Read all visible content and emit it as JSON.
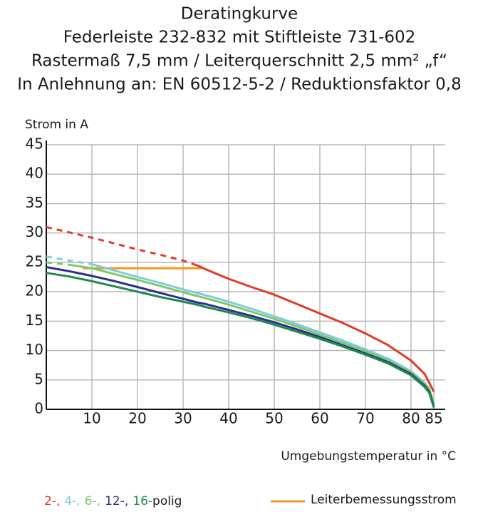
{
  "chart_data": {
    "type": "line",
    "title": [
      "Deratingkurve",
      "Federleiste 232-832 mit Stiftleiste 731-602",
      "Rastermaß 7,5 mm / Leiterquerschnitt 2,5 mm² „f“",
      "In Anlehnung an: EN 60512-5-2 / Reduktionsfaktor 0,8"
    ],
    "y_label": "Strom in A",
    "x_label": "Umgebungstemperatur in °C",
    "x": [
      0,
      5,
      10,
      15,
      20,
      25,
      30,
      33,
      35,
      40,
      45,
      50,
      55,
      60,
      65,
      70,
      75,
      80,
      83,
      84,
      85
    ],
    "series": [
      {
        "name": "2-,",
        "color": "#e03a2a",
        "dashed": [
          31,
          30.1,
          29.2,
          28.2,
          27.2,
          26.3,
          25.3,
          24.5,
          null,
          null,
          null,
          null,
          null,
          null,
          null,
          null,
          null,
          null,
          null,
          null,
          null
        ],
        "values": [
          null,
          null,
          null,
          null,
          null,
          null,
          null,
          24.5,
          23.8,
          22.2,
          20.8,
          19.5,
          17.9,
          16.3,
          14.7,
          12.9,
          10.9,
          8.3,
          6,
          4.5,
          3
        ]
      },
      {
        "name": "4-,",
        "color": "#7fcbe0",
        "dashed": [
          26,
          25.3,
          24.7,
          null,
          null,
          null,
          null,
          null,
          null,
          null,
          null,
          null,
          null,
          null,
          null,
          null,
          null,
          null,
          null,
          null,
          null
        ],
        "values": [
          null,
          null,
          24.7,
          23.6,
          22.5,
          21.5,
          20.4,
          19.8,
          19.4,
          18.3,
          17.1,
          15.8,
          14.5,
          13.1,
          11.7,
          10.2,
          8.6,
          6.5,
          4.5,
          3.5,
          1
        ]
      },
      {
        "name": "6-,",
        "color": "#7ec86a",
        "dashed": [
          25,
          24.6,
          null,
          null,
          null,
          null,
          null,
          null,
          null,
          null,
          null,
          null,
          null,
          null,
          null,
          null,
          null,
          null,
          null,
          null,
          null
        ],
        "values": [
          null,
          24.6,
          24,
          23,
          22,
          21,
          19.9,
          19.3,
          18.9,
          17.8,
          16.6,
          15.4,
          14.1,
          12.7,
          11.3,
          9.9,
          8.3,
          6.3,
          4.3,
          3.3,
          1
        ]
      },
      {
        "name": "12-,",
        "color": "#2e2f8a",
        "values": [
          24.2,
          23.5,
          22.7,
          21.8,
          20.8,
          19.8,
          18.8,
          18.2,
          17.9,
          16.9,
          15.9,
          14.8,
          13.6,
          12.3,
          10.9,
          9.5,
          8,
          6,
          4,
          3,
          0.5
        ]
      },
      {
        "name": "16-",
        "color": "#1e8a4a",
        "values": [
          23.2,
          22.6,
          21.8,
          20.9,
          20,
          19.1,
          18.3,
          17.8,
          17.4,
          16.5,
          15.5,
          14.4,
          13.2,
          12,
          10.7,
          9.3,
          7.8,
          5.8,
          3.8,
          2.8,
          0.3
        ]
      }
    ],
    "legend_suffix": "polig",
    "rated_current": {
      "name": "Leiterbemessungsstrom",
      "color": "#f39a1e",
      "x": [
        8,
        34
      ],
      "values": [
        24,
        24
      ]
    },
    "xlim": [
      0,
      87.5
    ],
    "xticks": [
      10,
      20,
      30,
      40,
      50,
      60,
      70,
      80,
      85
    ],
    "ylim": [
      0,
      45
    ],
    "yticks": [
      0,
      5,
      10,
      15,
      20,
      25,
      30,
      35,
      40,
      45
    ],
    "grid": true
  }
}
